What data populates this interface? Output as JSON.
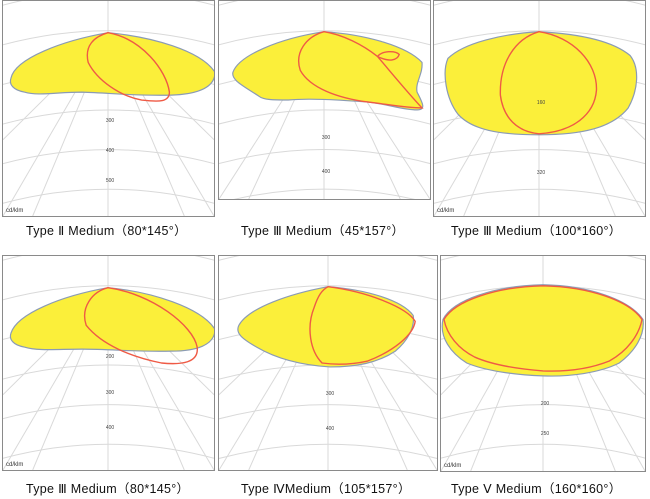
{
  "unit_label": "cd/klm",
  "panels": [
    {
      "caption": "Type Ⅱ  Medium（80*145°）",
      "ticks": [
        "300",
        "400",
        "500"
      ]
    },
    {
      "caption": "Type Ⅲ  Medium（45*157°）",
      "ticks": [
        "300",
        "400"
      ]
    },
    {
      "caption": "Type Ⅲ  Medium（100*160°）",
      "ticks": [
        "160",
        "320"
      ]
    },
    {
      "caption": "Type Ⅲ  Medium（80*145°）",
      "ticks": [
        "200",
        "300",
        "400"
      ]
    },
    {
      "caption": "Type ⅣMedium（105*157°）",
      "ticks": [
        "300",
        "400"
      ]
    },
    {
      "caption": "Type Ⅴ  Medium（160*160°）",
      "ticks": [
        "200",
        "250"
      ]
    }
  ],
  "colors": {
    "beam_fill": "#fbef3a",
    "beam_outline": "#8b9bb4",
    "cut_line": "#ef5a45",
    "grid": "#d9d9d9"
  }
}
